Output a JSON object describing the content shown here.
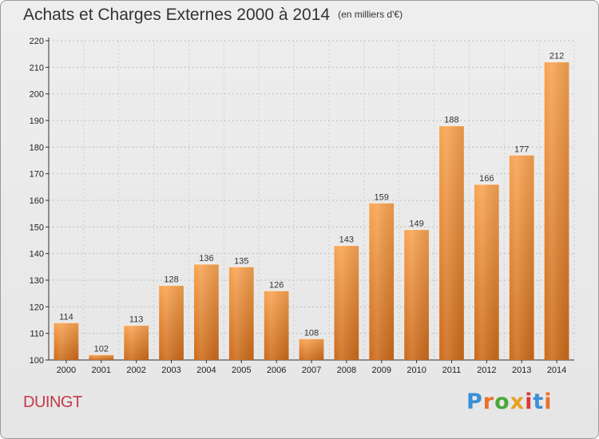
{
  "header": {
    "title": "Achats et Charges Externes 2000 à 2014",
    "unit": "(en milliers d'€)"
  },
  "footer": {
    "place": "DUINGT",
    "logo": "Proxiti",
    "logo_colors": [
      "#3a8fd8",
      "#e8712a",
      "#4aa83a",
      "#e8a021",
      "#d63a3a",
      "#3a8fd8",
      "#e8712a"
    ]
  },
  "chart_data": {
    "type": "bar",
    "title": "Achats et Charges Externes 2000 à 2014",
    "subtitle": "(en milliers d'€)",
    "xlabel": "",
    "ylabel": "",
    "categories": [
      "2000",
      "2001",
      "2002",
      "2003",
      "2004",
      "2005",
      "2006",
      "2007",
      "2008",
      "2009",
      "2010",
      "2011",
      "2012",
      "2013",
      "2014"
    ],
    "values": [
      114,
      102,
      113,
      128,
      136,
      135,
      126,
      108,
      143,
      159,
      149,
      188,
      166,
      177,
      212
    ],
    "ylim": [
      100,
      220
    ],
    "yticks": [
      100,
      110,
      120,
      130,
      140,
      150,
      160,
      170,
      180,
      190,
      200,
      210,
      220
    ],
    "grid": true,
    "data_labels": true,
    "bar_color": "#e8862c"
  }
}
